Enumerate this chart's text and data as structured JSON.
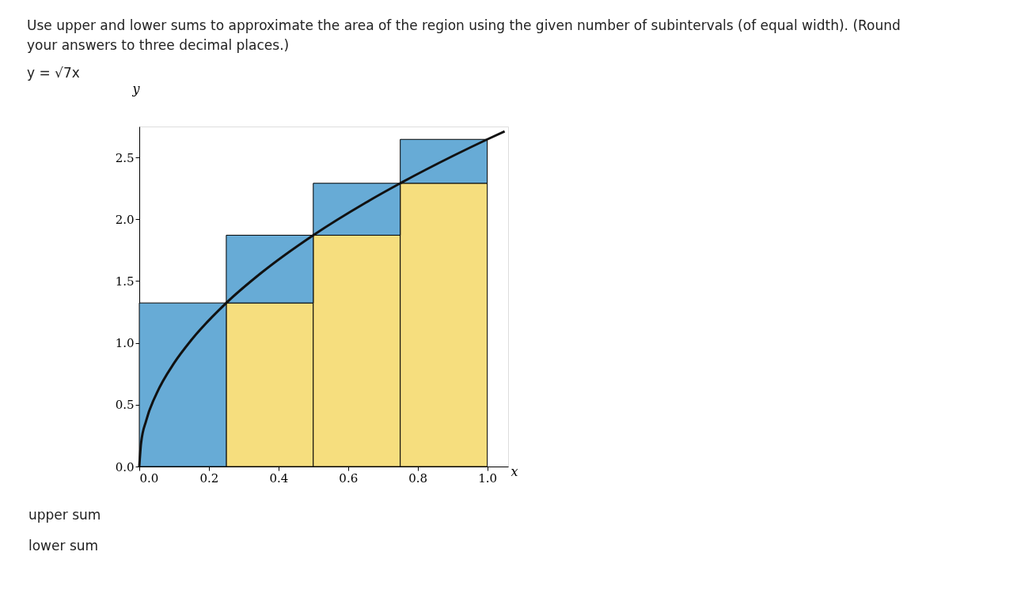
{
  "chart_data": {
    "type": "bar",
    "title": "Use upper and lower sums to approximate the area of the region using the given number of subintervals (of equal width). (Round your answers to three decimal places.)",
    "subtitle": "y = √7x",
    "xlabel": "x",
    "ylabel": "y",
    "x": [
      0.125,
      0.375,
      0.625,
      0.875
    ],
    "stacked": true,
    "series": [
      {
        "color": "#f6de7e",
        "values": [
          0,
          1.323,
          1.871,
          2.291
        ]
      },
      {
        "color": "#67abd6",
        "values": [
          1.323,
          0.548,
          0.42,
          0.355
        ]
      },
      {
        "type": "line",
        "color": "#111111",
        "x": [
          0,
          0.005,
          0.02,
          0.05,
          0.1,
          0.15,
          0.25,
          0.35,
          0.5,
          0.65,
          0.75,
          0.9,
          1.0,
          1.05
        ],
        "values": [
          0,
          0.187,
          0.374,
          0.592,
          0.837,
          1.025,
          1.323,
          1.565,
          1.871,
          2.133,
          2.291,
          2.51,
          2.646,
          2.711
        ]
      }
    ],
    "xlim": [
      0,
      1.06
    ],
    "xticks": [
      {
        "value": 0,
        "label": "0.0"
      },
      0.2,
      0.4,
      0.6,
      0.8,
      {
        "value": 1,
        "label": "1.0"
      }
    ],
    "ylim": [
      0,
      2.75
    ],
    "yticks": [
      {
        "value": 0,
        "label": "0.0"
      },
      0.5,
      {
        "value": 1,
        "label": "1.0"
      },
      1.5,
      {
        "value": 2,
        "label": "2.0"
      },
      2.5
    ],
    "grid": false,
    "annotations": [
      "upper sum",
      "lower sum"
    ]
  }
}
